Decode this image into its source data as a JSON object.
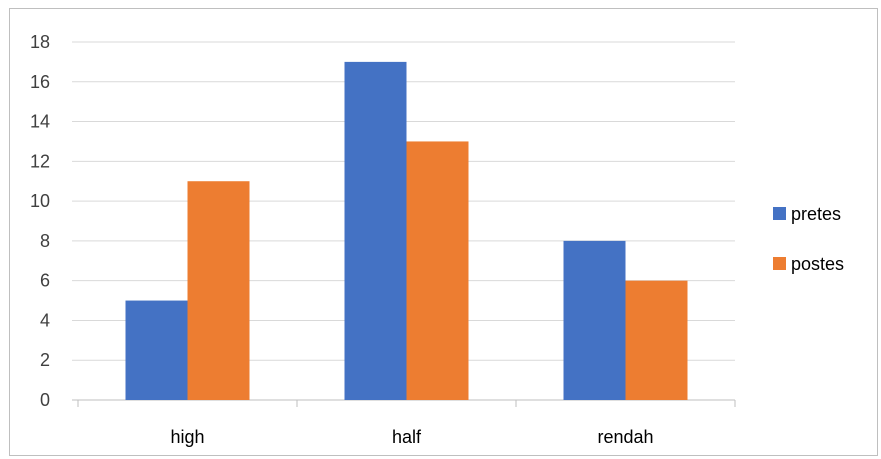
{
  "chart_data": {
    "type": "bar",
    "categories": [
      "high",
      "half",
      "rendah"
    ],
    "series": [
      {
        "name": "pretes",
        "values": [
          5,
          17,
          8
        ],
        "color": "#4472c4"
      },
      {
        "name": "postes",
        "values": [
          11,
          13,
          6
        ],
        "color": "#ed7d31"
      }
    ],
    "ylim": [
      0,
      18
    ],
    "yticks": [
      0,
      2,
      4,
      6,
      8,
      10,
      12,
      14,
      16,
      18
    ],
    "grid": true,
    "legend_position": "right",
    "gridline_color": "#d9d9d9",
    "axis_color": "#bfbfbf"
  }
}
